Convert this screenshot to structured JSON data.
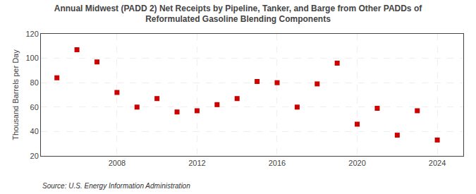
{
  "chart_data": {
    "type": "scatter",
    "title": "Annual Midwest (PADD 2) Net Receipts by Pipeline, Tanker, and Barge from Other PADDs of\nReformulated Gasoline Blending Components",
    "ylabel": "Thousand Barrels per Day",
    "annotations": [
      "Source: U.S. Energy Information Administration"
    ],
    "x": [
      2005,
      2006,
      2007,
      2008,
      2009,
      2010,
      2011,
      2012,
      2013,
      2014,
      2015,
      2016,
      2017,
      2018,
      2019,
      2020,
      2021,
      2022,
      2023,
      2024
    ],
    "values": [
      84,
      107,
      97,
      72,
      60,
      67,
      56,
      57,
      62,
      67,
      81,
      80,
      60,
      79,
      96,
      46,
      59,
      37,
      57,
      33
    ],
    "color": "#cc0000",
    "marker": "square",
    "xlim": [
      2004.2,
      2025.3
    ],
    "xticks": [
      2008,
      2012,
      2016,
      2020,
      2024
    ],
    "ylim": [
      20,
      120
    ],
    "yticks": [
      20,
      40,
      60,
      80,
      100,
      120
    ],
    "grid": true
  }
}
